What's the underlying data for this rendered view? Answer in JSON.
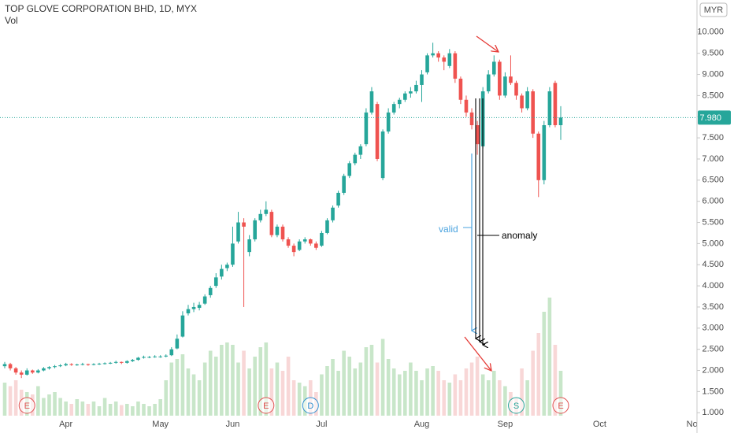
{
  "chart_data": {
    "type": "candlestick",
    "title": "TOP GLOVE CORPORATION BHD, 1D, MYX",
    "volume_label": "Vol",
    "currency": "MYR",
    "up_color": "#26a69a",
    "down_color": "#ef5350",
    "volume_up_color": "#c8e6c9",
    "volume_down_color": "#f8d7d7",
    "ylim": [
      0.93,
      10.76
    ],
    "yticks": [
      {
        "value": 1,
        "label": "1.000"
      },
      {
        "value": 1.5,
        "label": "1.500"
      },
      {
        "value": 2,
        "label": "2.000"
      },
      {
        "value": 2.5,
        "label": "2.500"
      },
      {
        "value": 3,
        "label": "3.000"
      },
      {
        "value": 3.5,
        "label": "3.500"
      },
      {
        "value": 4,
        "label": "4.000"
      },
      {
        "value": 4.5,
        "label": "4.500"
      },
      {
        "value": 5,
        "label": "5.000"
      },
      {
        "value": 5.5,
        "label": "5.500"
      },
      {
        "value": 6,
        "label": "6.000"
      },
      {
        "value": 6.5,
        "label": "6.500"
      },
      {
        "value": 7,
        "label": "7.000"
      },
      {
        "value": 7.5,
        "label": "7.500"
      },
      {
        "value": 8,
        "label": "8.000"
      },
      {
        "value": 8.5,
        "label": "8.500"
      },
      {
        "value": 9,
        "label": "9.000"
      },
      {
        "value": 9.5,
        "label": "9.500"
      },
      {
        "value": 10,
        "label": "10.000"
      }
    ],
    "last_price": {
      "value": 7.98,
      "label": "7.980"
    },
    "grid": false,
    "categories": [
      null,
      null,
      null,
      null,
      null,
      null,
      null,
      null,
      null,
      null,
      null,
      "Apr",
      null,
      null,
      null,
      null,
      null,
      null,
      null,
      null,
      null,
      null,
      null,
      null,
      null,
      null,
      null,
      null,
      "May",
      null,
      null,
      null,
      null,
      null,
      null,
      null,
      null,
      null,
      null,
      null,
      null,
      "Jun",
      null,
      null,
      null,
      null,
      null,
      null,
      null,
      null,
      null,
      null,
      null,
      null,
      null,
      null,
      null,
      "Jul",
      null,
      null,
      null,
      null,
      null,
      null,
      null,
      null,
      null,
      null,
      null,
      null,
      null,
      null,
      null,
      null,
      null,
      "Aug",
      null,
      null,
      null,
      null,
      null,
      null,
      null,
      null,
      null,
      null,
      null,
      null,
      null,
      null,
      "Sep",
      null,
      null,
      null,
      null,
      null,
      null,
      null,
      null,
      null,
      null,
      null,
      null,
      null,
      null,
      null,
      null,
      "Oct",
      null,
      null,
      null,
      null,
      null,
      null,
      null,
      null,
      null,
      null,
      null,
      null,
      null,
      null,
      null,
      null,
      "Nov",
      null,
      null,
      null,
      null,
      null,
      null
    ],
    "ohlc": [
      [
        2.1,
        2.2,
        2.05,
        2.15
      ],
      [
        2.15,
        2.18,
        2.0,
        2.05
      ],
      [
        2.05,
        2.08,
        1.9,
        1.95
      ],
      [
        1.95,
        2.0,
        1.82,
        1.9
      ],
      [
        1.9,
        2.05,
        1.88,
        2.0
      ],
      [
        2.0,
        2.02,
        1.92,
        1.95
      ],
      [
        1.95,
        2.03,
        1.93,
        2.0
      ],
      [
        2.0,
        2.08,
        1.98,
        2.05
      ],
      [
        2.05,
        2.1,
        2.02,
        2.08
      ],
      [
        2.08,
        2.13,
        2.05,
        2.1
      ],
      [
        2.1,
        2.15,
        2.08,
        2.12
      ],
      [
        2.12,
        2.18,
        2.1,
        2.15
      ],
      [
        2.15,
        2.17,
        2.11,
        2.13
      ],
      [
        2.13,
        2.16,
        2.11,
        2.14
      ],
      [
        2.14,
        2.18,
        2.12,
        2.15
      ],
      [
        2.15,
        2.16,
        2.11,
        2.13
      ],
      [
        2.13,
        2.17,
        2.12,
        2.15
      ],
      [
        2.15,
        2.18,
        2.13,
        2.16
      ],
      [
        2.16,
        2.19,
        2.14,
        2.17
      ],
      [
        2.17,
        2.2,
        2.15,
        2.18
      ],
      [
        2.18,
        2.23,
        2.16,
        2.2
      ],
      [
        2.2,
        2.21,
        2.15,
        2.18
      ],
      [
        2.18,
        2.24,
        2.16,
        2.22
      ],
      [
        2.22,
        2.27,
        2.2,
        2.25
      ],
      [
        2.25,
        2.32,
        2.23,
        2.3
      ],
      [
        2.3,
        2.35,
        2.28,
        2.32
      ],
      [
        2.32,
        2.34,
        2.29,
        2.32
      ],
      [
        2.32,
        2.36,
        2.3,
        2.33
      ],
      [
        2.33,
        2.36,
        2.3,
        2.33
      ],
      [
        2.33,
        2.38,
        2.31,
        2.35
      ],
      [
        2.36,
        2.55,
        2.34,
        2.5
      ],
      [
        2.52,
        2.85,
        2.5,
        2.75
      ],
      [
        2.8,
        3.4,
        2.78,
        3.3
      ],
      [
        3.35,
        3.55,
        3.3,
        3.45
      ],
      [
        3.45,
        3.6,
        3.38,
        3.5
      ],
      [
        3.48,
        3.62,
        3.42,
        3.55
      ],
      [
        3.58,
        3.8,
        3.55,
        3.75
      ],
      [
        3.78,
        4.0,
        3.72,
        3.95
      ],
      [
        4.0,
        4.3,
        3.95,
        4.2
      ],
      [
        4.22,
        4.5,
        4.15,
        4.4
      ],
      [
        4.42,
        4.55,
        4.35,
        4.5
      ],
      [
        4.5,
        5.4,
        4.45,
        5.0
      ],
      [
        5.05,
        5.75,
        5.0,
        5.5
      ],
      [
        5.5,
        5.6,
        3.5,
        5.4
      ],
      [
        4.8,
        5.2,
        4.7,
        5.1
      ],
      [
        5.1,
        5.6,
        5.05,
        5.55
      ],
      [
        5.55,
        5.8,
        5.5,
        5.7
      ],
      [
        5.7,
        6.0,
        5.65,
        5.8
      ],
      [
        5.75,
        5.8,
        5.15,
        5.2
      ],
      [
        5.2,
        5.45,
        5.15,
        5.4
      ],
      [
        5.4,
        5.45,
        5.05,
        5.1
      ],
      [
        5.1,
        5.15,
        4.9,
        4.95
      ],
      [
        4.95,
        5.0,
        4.7,
        4.8
      ],
      [
        4.85,
        5.1,
        4.82,
        5.05
      ],
      [
        5.05,
        5.15,
        5.0,
        5.1
      ],
      [
        5.1,
        5.12,
        4.95,
        5.0
      ],
      [
        5.0,
        5.05,
        4.85,
        4.9
      ],
      [
        4.95,
        5.3,
        4.92,
        5.25
      ],
      [
        5.25,
        5.6,
        5.22,
        5.55
      ],
      [
        5.55,
        5.9,
        5.5,
        5.85
      ],
      [
        5.9,
        6.25,
        5.85,
        6.2
      ],
      [
        6.2,
        6.65,
        6.15,
        6.6
      ],
      [
        6.6,
        6.95,
        6.55,
        6.9
      ],
      [
        6.9,
        7.15,
        6.85,
        7.1
      ],
      [
        7.1,
        7.35,
        7.0,
        7.3
      ],
      [
        7.35,
        8.2,
        7.3,
        8.1
      ],
      [
        8.1,
        8.7,
        8.05,
        8.6
      ],
      [
        8.3,
        8.35,
        6.95,
        7.0
      ],
      [
        6.55,
        7.7,
        6.5,
        7.65
      ],
      [
        7.65,
        8.2,
        7.6,
        8.1
      ],
      [
        8.1,
        8.35,
        8.05,
        8.3
      ],
      [
        8.3,
        8.45,
        8.2,
        8.4
      ],
      [
        8.4,
        8.6,
        8.35,
        8.55
      ],
      [
        8.55,
        8.7,
        8.45,
        8.6
      ],
      [
        8.6,
        8.85,
        8.55,
        8.75
      ],
      [
        8.75,
        9.1,
        8.35,
        9.0
      ],
      [
        9.05,
        9.5,
        9.0,
        9.45
      ],
      [
        9.45,
        9.75,
        9.4,
        9.5
      ],
      [
        9.5,
        9.55,
        9.3,
        9.4
      ],
      [
        9.4,
        9.45,
        9.1,
        9.3
      ],
      [
        9.2,
        9.6,
        9.15,
        9.5
      ],
      [
        9.5,
        9.55,
        8.8,
        8.9
      ],
      [
        8.9,
        8.95,
        8.3,
        8.4
      ],
      [
        8.4,
        8.5,
        8.0,
        8.1
      ],
      [
        8.1,
        8.2,
        7.7,
        7.8
      ],
      [
        7.8,
        7.9,
        7.1,
        7.35
      ],
      [
        7.3,
        8.7,
        7.25,
        8.6
      ],
      [
        8.6,
        9.1,
        8.55,
        9.0
      ],
      [
        9.0,
        9.45,
        8.95,
        9.3
      ],
      [
        9.3,
        9.35,
        8.4,
        8.5
      ],
      [
        8.5,
        9.05,
        8.45,
        8.95
      ],
      [
        8.95,
        9.45,
        8.75,
        8.8
      ],
      [
        8.8,
        8.85,
        8.4,
        8.5
      ],
      [
        8.5,
        8.55,
        8.1,
        8.2
      ],
      [
        8.2,
        8.7,
        8.15,
        8.6
      ],
      [
        8.6,
        8.65,
        7.5,
        7.6
      ],
      [
        7.6,
        7.65,
        6.1,
        6.5
      ],
      [
        6.5,
        7.9,
        6.4,
        7.8
      ],
      [
        7.8,
        8.7,
        7.75,
        8.6
      ],
      [
        8.8,
        8.85,
        7.75,
        7.8
      ],
      [
        7.8,
        8.25,
        7.45,
        7.98
      ],
      null,
      null,
      null,
      null,
      null,
      null,
      null,
      null,
      null,
      null,
      null,
      null,
      null,
      null,
      null,
      null,
      null,
      null,
      null,
      null,
      null,
      null,
      null,
      null,
      null,
      null,
      null,
      null,
      null,
      null
    ],
    "volume_ylim": [
      0,
      100
    ],
    "volume": [
      28,
      25,
      30,
      22,
      20,
      18,
      25,
      15,
      18,
      20,
      15,
      12,
      10,
      14,
      12,
      10,
      12,
      8,
      15,
      10,
      12,
      9,
      10,
      8,
      12,
      10,
      8,
      10,
      14,
      30,
      45,
      48,
      52,
      40,
      35,
      30,
      45,
      55,
      50,
      60,
      62,
      60,
      45,
      55,
      40,
      50,
      58,
      62,
      40,
      45,
      38,
      50,
      30,
      28,
      25,
      30,
      20,
      35,
      42,
      48,
      38,
      55,
      50,
      40,
      45,
      58,
      60,
      45,
      65,
      48,
      40,
      35,
      38,
      45,
      38,
      30,
      40,
      42,
      38,
      30,
      28,
      35,
      30,
      40,
      45,
      50,
      35,
      30,
      38,
      30,
      25,
      20,
      15,
      40,
      30,
      55,
      70,
      88,
      100,
      60,
      38,
      null,
      null,
      null,
      null,
      null,
      null,
      null,
      null,
      null,
      null,
      null,
      null,
      null,
      null,
      null,
      null,
      null,
      null,
      null,
      null,
      null,
      null,
      null,
      null,
      null,
      null,
      null,
      null,
      null,
      null
    ],
    "events": [
      {
        "label": "E",
        "index": 4,
        "color": "#e05050"
      },
      {
        "label": "E",
        "index": 47,
        "color": "#e05050"
      },
      {
        "label": "D",
        "index": 55,
        "color": "#2f8fd0"
      },
      {
        "label": "S",
        "index": 92,
        "color": "#26a69a"
      },
      {
        "label": "E",
        "index": 100,
        "color": "#e05050"
      }
    ],
    "annotations": [
      "valid",
      "anomaly"
    ]
  }
}
